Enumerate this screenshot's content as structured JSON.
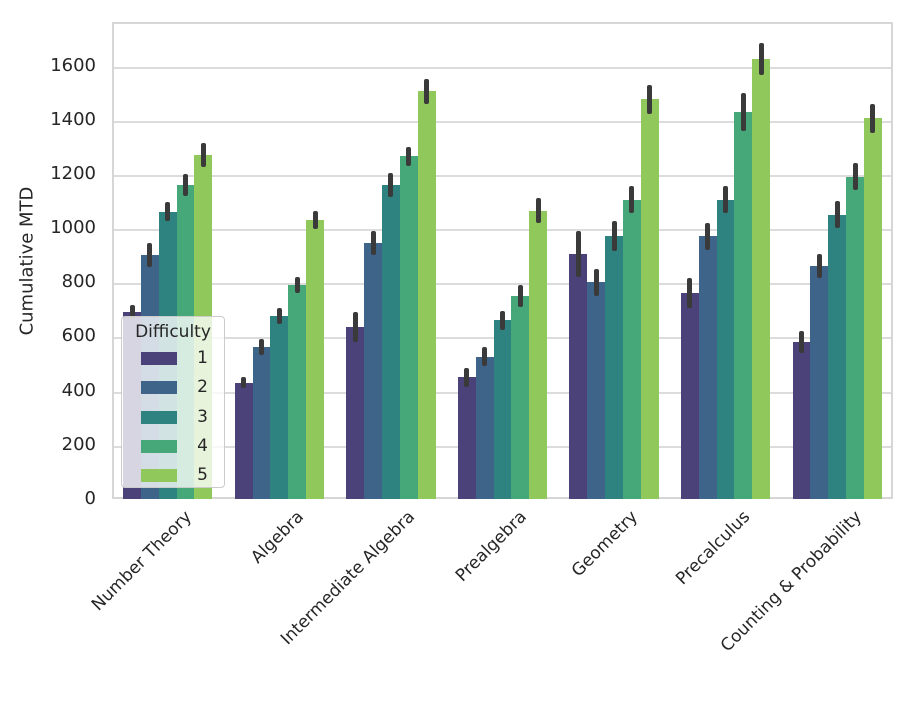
{
  "figure": {
    "background": "#ffffff",
    "text_color": "#262626",
    "grid_color": "#dcdcdc",
    "spine_color": "#d6d6d6",
    "errorbar_color": "#3a3a3a"
  },
  "chart_data": {
    "type": "bar",
    "title": "",
    "xlabel": "",
    "ylabel": "Cumulative MTD",
    "categories": [
      "Number Theory",
      "Algebra",
      "Intermediate Algebra",
      "Prealgebra",
      "Geometry",
      "Precalculus",
      "Counting & Probability"
    ],
    "yticks": [
      0,
      200,
      400,
      600,
      800,
      1000,
      1200,
      1400,
      1600
    ],
    "ylim": [
      0,
      1761
    ],
    "grid": "horizontal-only",
    "legend": {
      "title": "Difficulty",
      "position": "inside-lower-left",
      "entries": [
        "1",
        "2",
        "3",
        "4",
        "5"
      ]
    },
    "palette": [
      "#4a4278",
      "#3e6489",
      "#2e827f",
      "#46a878",
      "#90c85b"
    ],
    "series": [
      {
        "name": "1",
        "color": "#4a4278",
        "values": [
          690,
          430,
          635,
          450,
          905,
          760,
          580
        ],
        "errors": [
          25,
          20,
          55,
          35,
          85,
          55,
          40
        ]
      },
      {
        "name": "2",
        "color": "#3e6489",
        "values": [
          900,
          560,
          945,
          525,
          800,
          970,
          860
        ],
        "errors": [
          45,
          30,
          45,
          35,
          50,
          50,
          45
        ]
      },
      {
        "name": "3",
        "color": "#2e827f",
        "values": [
          1060,
          675,
          1160,
          660,
          970,
          1105,
          1050
        ],
        "errors": [
          35,
          30,
          45,
          35,
          55,
          50,
          50
        ]
      },
      {
        "name": "4",
        "color": "#46a878",
        "values": [
          1160,
          790,
          1265,
          750,
          1105,
          1430,
          1190
        ],
        "errors": [
          40,
          30,
          35,
          40,
          50,
          70,
          50
        ]
      },
      {
        "name": "5",
        "color": "#90c85b",
        "values": [
          1270,
          1030,
          1505,
          1065,
          1475,
          1625,
          1405
        ],
        "errors": [
          45,
          35,
          45,
          45,
          55,
          60,
          55
        ]
      }
    ]
  }
}
